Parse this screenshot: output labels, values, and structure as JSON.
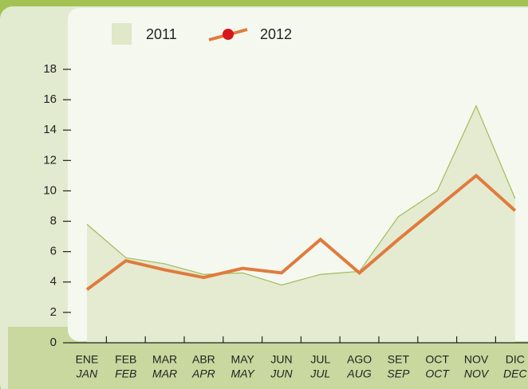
{
  "chart_data": {
    "type": "area-line",
    "categories": [
      "ENE",
      "FEB",
      "MAR",
      "ABR",
      "MAY",
      "JUN",
      "JUL",
      "AGO",
      "SET",
      "OCT",
      "NOV",
      "DIC"
    ],
    "categories_en": [
      "JAN",
      "FEB",
      "MAR",
      "APR",
      "MAY",
      "JUN",
      "JUL",
      "AUG",
      "SEP",
      "OCT",
      "NOV",
      "DEC"
    ],
    "series": [
      {
        "name": "2011",
        "color": "#9ebd5a",
        "fill": "#e4ebd1",
        "values": [
          7.8,
          5.6,
          5.2,
          4.5,
          4.6,
          3.8,
          4.5,
          4.7,
          8.3,
          10.0,
          15.6,
          9.5
        ]
      },
      {
        "name": "2012",
        "color": "#e07b3c",
        "marker_color": "#d7141d",
        "values": [
          3.5,
          5.4,
          4.8,
          4.3,
          4.9,
          4.6,
          6.8,
          4.6,
          6.8,
          8.9,
          11.0,
          8.7
        ]
      }
    ],
    "ylim": [
      0,
      18
    ],
    "yticks": [
      0,
      2,
      4,
      6,
      8,
      10,
      12,
      14,
      16,
      18
    ]
  }
}
